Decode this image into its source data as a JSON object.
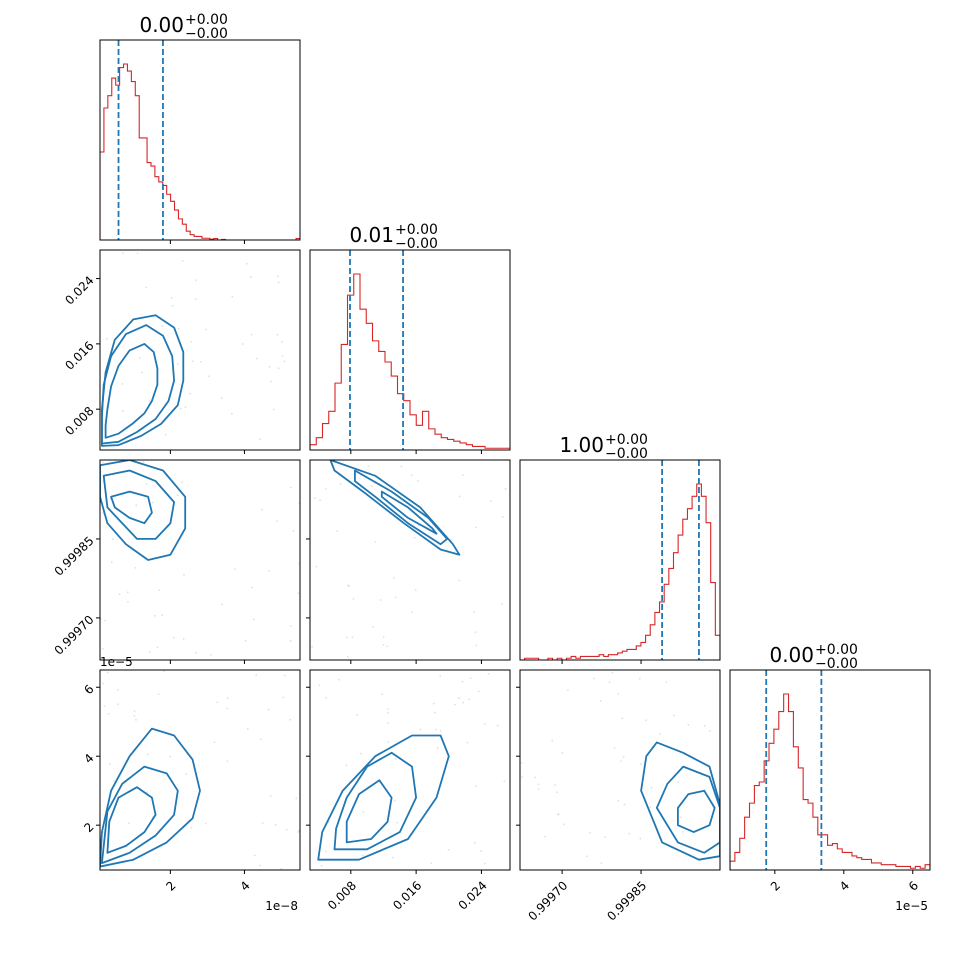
{
  "chart_data": {
    "type": "corner",
    "colors": {
      "hist": "#d62728",
      "contour": "#1f77b4",
      "quantile": "#1f77b4",
      "scatter": "#bbbbbb"
    },
    "params": [
      {
        "range": [
          1e-09,
          5.5e-08
        ],
        "ticks": [
          2e-08,
          4e-08
        ],
        "tick_labels": [
          "2",
          "4"
        ],
        "offset_text": "1e−8",
        "title_value": "0.00",
        "title_plus": "+0.00",
        "title_minus": "−0.00",
        "quantiles": [
          6e-09,
          1.8e-08
        ],
        "hist_bins": [
          0.5,
          0.75,
          0.82,
          0.92,
          0.88,
          0.98,
          1.0,
          0.96,
          0.9,
          0.82,
          0.58,
          0.58,
          0.44,
          0.42,
          0.36,
          0.33,
          0.31,
          0.26,
          0.22,
          0.17,
          0.12,
          0.09,
          0.05,
          0.03,
          0.02,
          0.02,
          0.01,
          0.01,
          0.005,
          0.008,
          0.0,
          0.003,
          0.0,
          0.0,
          0.0,
          0.0,
          0.0,
          0.0,
          0.0,
          0.0,
          0.0,
          0.0,
          0.0,
          0.0,
          0.0,
          0.0,
          0.0,
          0.0,
          0.0,
          0.0,
          0.008
        ]
      },
      {
        "range": [
          0.003,
          0.0275
        ],
        "ticks": [
          0.008,
          0.016,
          0.024
        ],
        "tick_labels": [
          "0.008",
          "0.016",
          "0.024"
        ],
        "offset_text": "",
        "title_value": "0.01",
        "title_plus": "+0.00",
        "title_minus": "−0.00",
        "quantiles": [
          0.0079,
          0.0144
        ],
        "hist_bins": [
          0.03,
          0.07,
          0.15,
          0.22,
          0.38,
          0.6,
          0.88,
          1.0,
          0.8,
          0.72,
          0.62,
          0.56,
          0.5,
          0.42,
          0.32,
          0.28,
          0.2,
          0.14,
          0.22,
          0.12,
          0.09,
          0.07,
          0.06,
          0.05,
          0.04,
          0.03,
          0.02,
          0.02,
          0.01,
          0.01,
          0.01,
          0.01
        ]
      },
      {
        "range": [
          0.99962,
          1.0
        ],
        "ticks": [
          0.9997,
          0.99985
        ],
        "tick_labels": [
          "0.99970",
          "0.99985"
        ],
        "offset_text": "",
        "title_value": "1.00",
        "title_plus": "+0.00",
        "title_minus": "−0.00",
        "quantiles": [
          0.99989,
          0.99996
        ],
        "hist_bins": [
          0.0,
          0.01,
          0.01,
          0.01,
          0.0,
          0.0,
          0.01,
          0.0,
          0.01,
          0.0,
          0.01,
          0.02,
          0.01,
          0.02,
          0.02,
          0.02,
          0.02,
          0.03,
          0.02,
          0.03,
          0.03,
          0.04,
          0.05,
          0.06,
          0.06,
          0.08,
          0.1,
          0.14,
          0.2,
          0.27,
          0.33,
          0.43,
          0.52,
          0.61,
          0.71,
          0.8,
          0.86,
          0.93,
          1.0,
          0.93,
          0.78,
          0.44,
          0.14
        ]
      },
      {
        "range": [
          7e-06,
          6.5e-05
        ],
        "ticks": [
          2e-05,
          4e-05,
          6e-05
        ],
        "tick_labels": [
          "2",
          "4",
          "6"
        ],
        "offset_text": "1e−5",
        "title_value": "0.00",
        "title_plus": "+0.00",
        "title_minus": "−0.00",
        "quantiles": [
          1.75e-05,
          3.35e-05
        ],
        "hist_bins": [
          0.05,
          0.1,
          0.18,
          0.3,
          0.38,
          0.48,
          0.5,
          0.62,
          0.72,
          0.8,
          0.9,
          1.0,
          0.9,
          0.7,
          0.58,
          0.4,
          0.38,
          0.3,
          0.2,
          0.2,
          0.14,
          0.15,
          0.12,
          0.1,
          0.1,
          0.08,
          0.07,
          0.06,
          0.06,
          0.04,
          0.04,
          0.03,
          0.03,
          0.03,
          0.02,
          0.02,
          0.02,
          0.01,
          0.02,
          0.01,
          0.03
        ]
      }
    ],
    "contours": {
      "1_0": [
        [
          [
            2.5e-09,
            0.0045
          ],
          [
            6e-09,
            0.005
          ],
          [
            1e-08,
            0.0063
          ],
          [
            1.3e-08,
            0.0075
          ],
          [
            1.5e-08,
            0.009
          ],
          [
            1.65e-08,
            0.011
          ],
          [
            1.65e-08,
            0.013
          ],
          [
            1.55e-08,
            0.015
          ],
          [
            1.3e-08,
            0.016
          ],
          [
            9e-09,
            0.0152
          ],
          [
            6e-09,
            0.0133
          ],
          [
            4e-09,
            0.0108
          ],
          [
            3e-09,
            0.008
          ],
          [
            2.5e-09,
            0.006
          ]
        ],
        [
          [
            1.5e-09,
            0.0038
          ],
          [
            6e-09,
            0.004
          ],
          [
            1.1e-08,
            0.0052
          ],
          [
            1.6e-08,
            0.0068
          ],
          [
            1.95e-08,
            0.009
          ],
          [
            2.1e-08,
            0.0115
          ],
          [
            2.05e-08,
            0.0145
          ],
          [
            1.8e-08,
            0.017
          ],
          [
            1.35e-08,
            0.0183
          ],
          [
            8e-09,
            0.0172
          ],
          [
            4e-09,
            0.0145
          ],
          [
            2e-09,
            0.011
          ],
          [
            1.5e-09,
            0.007
          ]
        ],
        [
          [
            1.5e-09,
            0.0035
          ],
          [
            6e-09,
            0.0036
          ],
          [
            1.2e-08,
            0.0047
          ],
          [
            1.75e-08,
            0.0062
          ],
          [
            2.2e-08,
            0.0085
          ],
          [
            2.35e-08,
            0.0115
          ],
          [
            2.35e-08,
            0.015
          ],
          [
            2.1e-08,
            0.018
          ],
          [
            1.6e-08,
            0.0195
          ],
          [
            1e-08,
            0.019
          ],
          [
            5e-09,
            0.0165
          ],
          [
            2.5e-09,
            0.0125
          ],
          [
            1.5e-09,
            0.008
          ]
        ]
      ],
      "2_0": [
        [
          [
            4e-09,
            0.99993
          ],
          [
            9e-09,
            0.99994
          ],
          [
            1.4e-08,
            0.99993
          ],
          [
            1.5e-08,
            0.9999
          ],
          [
            1.3e-08,
            0.99988
          ],
          [
            9e-09,
            0.99989
          ],
          [
            5e-09,
            0.99991
          ]
        ],
        [
          [
            2e-09,
            0.99997
          ],
          [
            9e-09,
            0.99998
          ],
          [
            1.6e-08,
            0.99996
          ],
          [
            2.1e-08,
            0.99992
          ],
          [
            2e-08,
            0.99988
          ],
          [
            1.6e-08,
            0.99985
          ],
          [
            1.1e-08,
            0.99985
          ],
          [
            7e-09,
            0.99988
          ],
          [
            3e-09,
            0.99991
          ]
        ],
        [
          [
            1e-09,
            0.99999
          ],
          [
            9e-09,
            1.0
          ],
          [
            1.8e-08,
            0.99998
          ],
          [
            2.4e-08,
            0.99993
          ],
          [
            2.4e-08,
            0.99987
          ],
          [
            2e-08,
            0.99982
          ],
          [
            1.4e-08,
            0.99981
          ],
          [
            8e-09,
            0.99984
          ],
          [
            3e-09,
            0.99988
          ],
          [
            1e-09,
            0.99993
          ]
        ]
      ],
      "3_0": [
        [
          [
            3e-09,
            1.2e-05
          ],
          [
            8e-09,
            1.4e-05
          ],
          [
            1.3e-08,
            1.8e-05
          ],
          [
            1.6e-08,
            2.3e-05
          ],
          [
            1.5e-08,
            2.8e-05
          ],
          [
            1.1e-08,
            3.1e-05
          ],
          [
            6e-09,
            2.8e-05
          ],
          [
            3.5e-09,
            2.1e-05
          ]
        ],
        [
          [
            1.5e-09,
            9e-06
          ],
          [
            9e-09,
            1.2e-05
          ],
          [
            1.6e-08,
            1.7e-05
          ],
          [
            2.1e-08,
            2.3e-05
          ],
          [
            2.2e-08,
            3e-05
          ],
          [
            1.9e-08,
            3.5e-05
          ],
          [
            1.3e-08,
            3.7e-05
          ],
          [
            7e-09,
            3.2e-05
          ],
          [
            3e-09,
            2.4e-05
          ]
        ],
        [
          [
            1e-09,
            8e-06
          ],
          [
            1e-08,
            1e-05
          ],
          [
            1.9e-08,
            1.5e-05
          ],
          [
            2.6e-08,
            2.2e-05
          ],
          [
            2.8e-08,
            3e-05
          ],
          [
            2.6e-08,
            3.9e-05
          ],
          [
            2.1e-08,
            4.6e-05
          ],
          [
            1.5e-08,
            4.8e-05
          ],
          [
            9e-09,
            4e-05
          ],
          [
            4e-09,
            3e-05
          ],
          [
            1.5e-09,
            1.8e-05
          ]
        ]
      ],
      "2_1": [
        [
          [
            0.0118,
            0.99994
          ],
          [
            0.015,
            0.99991
          ],
          [
            0.018,
            0.99987
          ],
          [
            0.0185,
            0.99986
          ],
          [
            0.015,
            0.99989
          ],
          [
            0.0118,
            0.99993
          ]
        ],
        [
          [
            0.0085,
            0.99998
          ],
          [
            0.013,
            0.99994
          ],
          [
            0.0175,
            0.99989
          ],
          [
            0.0198,
            0.99985
          ],
          [
            0.019,
            0.99984
          ],
          [
            0.015,
            0.99988
          ],
          [
            0.011,
            0.99993
          ],
          [
            0.0085,
            0.99996
          ]
        ],
        [
          [
            0.0055,
            1.0
          ],
          [
            0.011,
            0.99997
          ],
          [
            0.0165,
            0.99991
          ],
          [
            0.0205,
            0.99984
          ],
          [
            0.0213,
            0.99982
          ],
          [
            0.019,
            0.99983
          ],
          [
            0.0145,
            0.99988
          ],
          [
            0.0095,
            0.99994
          ],
          [
            0.006,
            0.99998
          ]
        ]
      ],
      "3_1": [
        [
          [
            0.0075,
            1.5e-05
          ],
          [
            0.0105,
            1.6e-05
          ],
          [
            0.0125,
            2.1e-05
          ],
          [
            0.013,
            2.8e-05
          ],
          [
            0.0115,
            3.3e-05
          ],
          [
            0.009,
            2.9e-05
          ],
          [
            0.0075,
            2.1e-05
          ]
        ],
        [
          [
            0.006,
            1.3e-05
          ],
          [
            0.01,
            1.3e-05
          ],
          [
            0.014,
            1.8e-05
          ],
          [
            0.016,
            2.8e-05
          ],
          [
            0.0155,
            3.7e-05
          ],
          [
            0.013,
            4.1e-05
          ],
          [
            0.01,
            3.7e-05
          ],
          [
            0.0075,
            2.8e-05
          ],
          [
            0.0062,
            1.9e-05
          ]
        ],
        [
          [
            0.004,
            1e-05
          ],
          [
            0.009,
            1e-05
          ],
          [
            0.015,
            1.6e-05
          ],
          [
            0.0185,
            2.8e-05
          ],
          [
            0.02,
            4e-05
          ],
          [
            0.019,
            4.6e-05
          ],
          [
            0.0155,
            4.6e-05
          ],
          [
            0.011,
            4e-05
          ],
          [
            0.007,
            3e-05
          ],
          [
            0.0045,
            1.8e-05
          ]
        ]
      ],
      "3_2": [
        [
          [
            0.99992,
            2e-05
          ],
          [
            0.99995,
            1.8e-05
          ],
          [
            0.99998,
            2e-05
          ],
          [
            0.99999,
            2.5e-05
          ],
          [
            0.99997,
            3e-05
          ],
          [
            0.99994,
            2.9e-05
          ],
          [
            0.99992,
            2.5e-05
          ]
        ],
        [
          [
            0.99988,
            2.5e-05
          ],
          [
            0.99992,
            1.5e-05
          ],
          [
            0.99997,
            1.2e-05
          ],
          [
            1.0,
            1.5e-05
          ],
          [
            1.0,
            2.5e-05
          ],
          [
            0.99998,
            3.4e-05
          ],
          [
            0.99993,
            3.7e-05
          ],
          [
            0.9999,
            3.2e-05
          ]
        ],
        [
          [
            0.99985,
            3e-05
          ],
          [
            0.99989,
            1.5e-05
          ],
          [
            0.99996,
            1e-05
          ],
          [
            1.0,
            1.1e-05
          ],
          [
            1.0,
            2.6e-05
          ],
          [
            0.99998,
            3.7e-05
          ],
          [
            0.99993,
            4.1e-05
          ],
          [
            0.99988,
            4.4e-05
          ],
          [
            0.99986,
            4e-05
          ]
        ]
      ]
    }
  }
}
